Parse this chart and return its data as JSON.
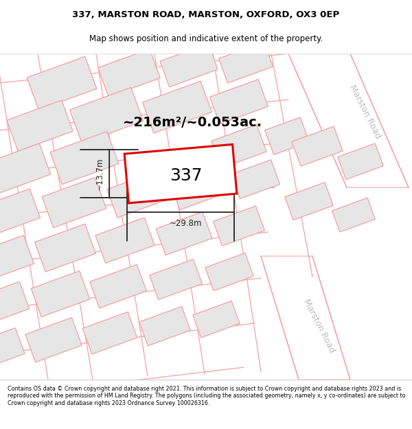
{
  "title_line1": "337, MARSTON ROAD, MARSTON, OXFORD, OX3 0EP",
  "title_line2": "Map shows position and indicative extent of the property.",
  "footer": "Contains OS data © Crown copyright and database right 2021. This information is subject to Crown copyright and database rights 2023 and is reproduced with the permission of HM Land Registry. The polygons (including the associated geometry, namely x, y co-ordinates) are subject to Crown copyright and database rights 2023 Ordnance Survey 100026316.",
  "area_label": "~216m²/~0.053ac.",
  "width_label": "~29.8m",
  "height_label": "~13.7m",
  "number_label": "337",
  "bg_color": "#ffffff",
  "plot_color_fill": "#ffffff",
  "plot_color_stroke": "#dd0000",
  "road_label1": "Marston Road",
  "road_label2": "Marston Road",
  "other_poly_fill": "#e6e6e6",
  "other_poly_stroke": "#f5a0a0",
  "road_stroke": "#f5a0a0",
  "dim_color": "#222222",
  "title_fontsize": 9.5,
  "subtitle_fontsize": 8.5,
  "footer_fontsize": 5.8,
  "area_fontsize": 14,
  "number_fontsize": 18,
  "dim_fontsize": 8.5,
  "road_label_color": "#bbbbbb",
  "road_label_fontsize": 9
}
